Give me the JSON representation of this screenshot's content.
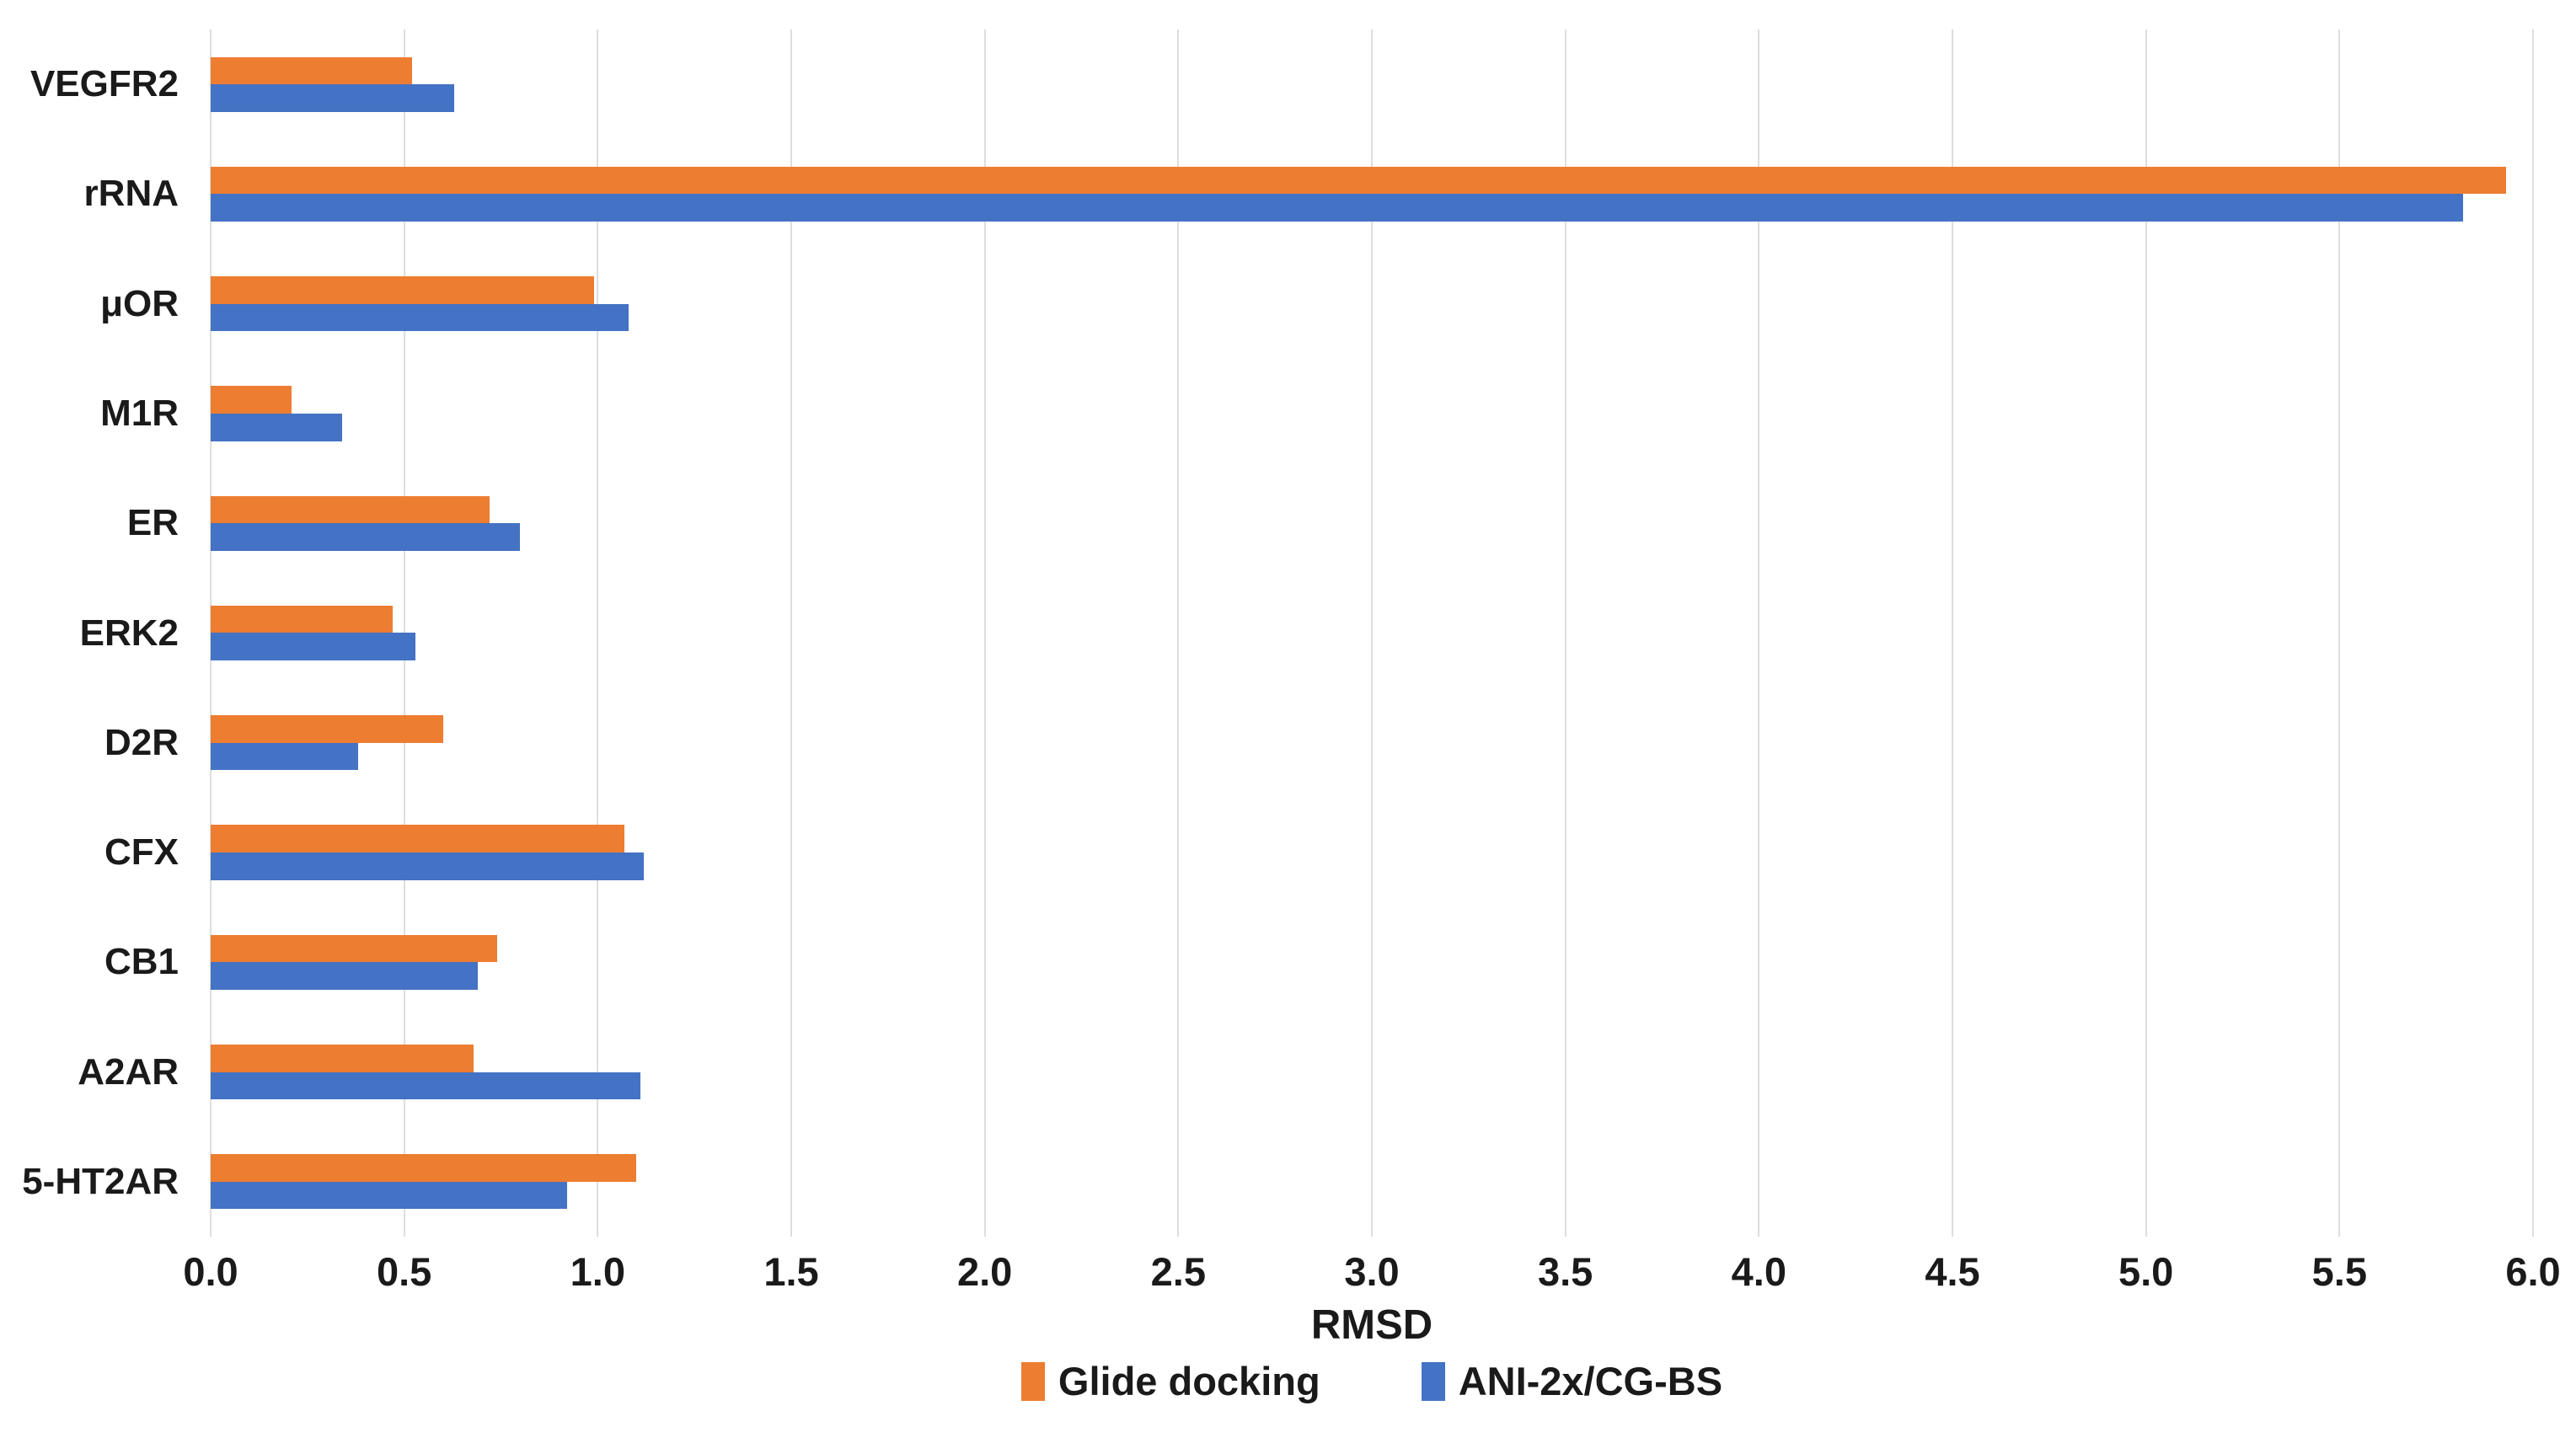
{
  "chart_data": {
    "type": "bar",
    "orientation": "horizontal",
    "title": "",
    "xlabel": "RMSD",
    "ylabel": "",
    "xlim": [
      0,
      6
    ],
    "xtick_labels": [
      "0.0",
      "0.5",
      "1.0",
      "1.5",
      "2.0",
      "2.5",
      "3.0",
      "3.5",
      "4.0",
      "4.5",
      "5.0",
      "5.5",
      "6.0"
    ],
    "grid": true,
    "gridline_color": "#dddddd",
    "legend_position": "bottom",
    "categories": [
      "VEGFR2",
      "rRNA",
      "μOR",
      "M1R",
      "ER",
      "ERK2",
      "D2R",
      "CFX",
      "CB1",
      "A2AR",
      "5-HT2AR"
    ],
    "series": [
      {
        "name": "Glide docking",
        "color": "#ED7D31",
        "values": [
          0.52,
          5.93,
          0.99,
          0.21,
          0.72,
          0.47,
          0.6,
          1.07,
          0.74,
          0.68,
          1.1
        ]
      },
      {
        "name": "ANI-2x/CG-BS",
        "color": "#4472C4",
        "values": [
          0.63,
          5.82,
          1.08,
          0.34,
          0.8,
          0.53,
          0.38,
          1.12,
          0.69,
          1.11,
          0.92
        ]
      }
    ]
  }
}
